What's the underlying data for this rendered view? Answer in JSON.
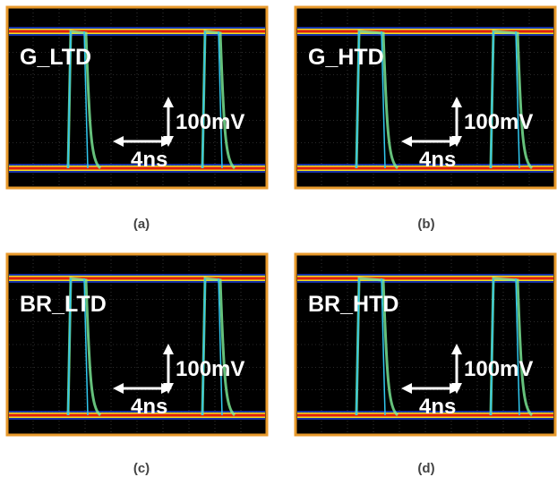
{
  "panels": [
    {
      "label": "G_LTD",
      "caption": "(a)",
      "voltage_scale": "100mV",
      "time_scale": "4ns"
    },
    {
      "label": "G_HTD",
      "caption": "(b)",
      "voltage_scale": "100mV",
      "time_scale": "4ns"
    },
    {
      "label": "BR_LTD",
      "caption": "(c)",
      "voltage_scale": "100mV",
      "time_scale": "4ns"
    },
    {
      "label": "BR_HTD",
      "caption": "(d)",
      "voltage_scale": "100mV",
      "time_scale": "4ns"
    }
  ]
}
